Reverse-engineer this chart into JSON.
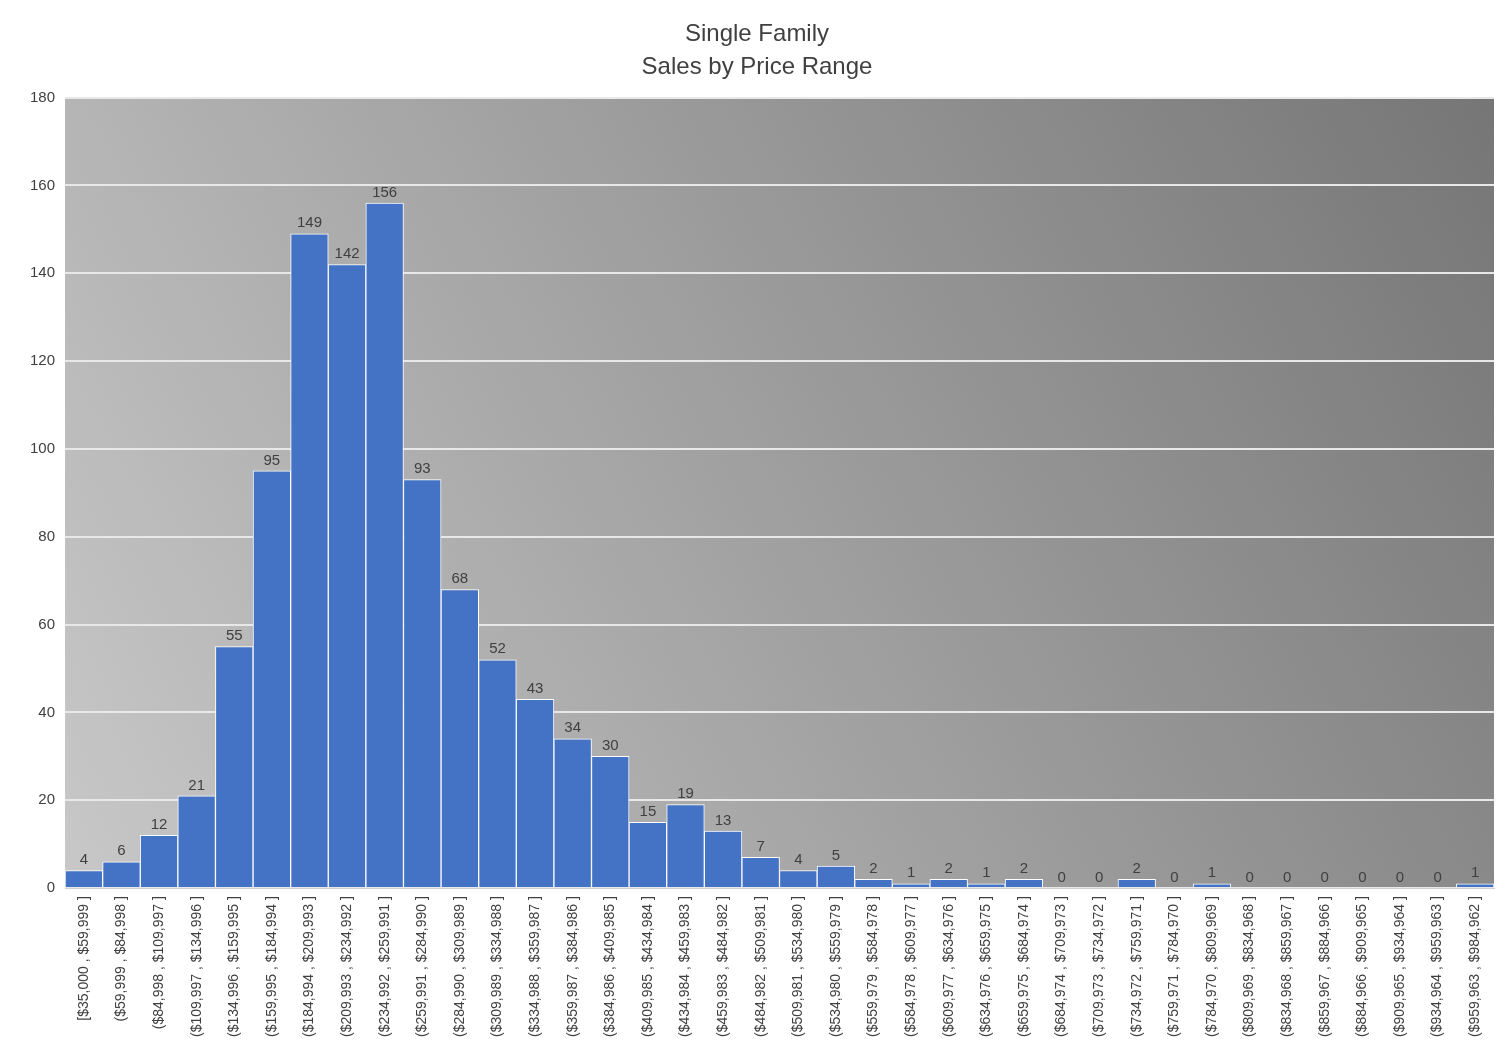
{
  "chart_data": {
    "type": "bar",
    "title": "Single Family",
    "subtitle": "Sales by Price Range",
    "categories": [
      "[$35,000 , $59,999 ]",
      "($59,999 , $84,998 ]",
      "($84,998 , $109,997 ]",
      "($109,997 , $134,996 ]",
      "($134,996 , $159,995 ]",
      "($159,995 , $184,994 ]",
      "($184,994 , $209,993 ]",
      "($209,993 , $234,992 ]",
      "($234,992 , $259,991 ]",
      "($259,991 , $284,990 ]",
      "($284,990 , $309,989 ]",
      "($309,989 , $334,988 ]",
      "($334,988 , $359,987 ]",
      "($359,987 , $384,986 ]",
      "($384,986 , $409,985 ]",
      "($409,985 , $434,984 ]",
      "($434,984 , $459,983 ]",
      "($459,983 , $484,982 ]",
      "($484,982 , $509,981 ]",
      "($509,981 , $534,980 ]",
      "($534,980 , $559,979 ]",
      "($559,979 , $584,978 ]",
      "($584,978 , $609,977 ]",
      "($609,977 , $634,976 ]",
      "($634,976 , $659,975 ]",
      "($659,975 , $684,974 ]",
      "($684,974 , $709,973 ]",
      "($709,973 , $734,972 ]",
      "($734,972 , $759,971 ]",
      "($759,971 , $784,970 ]",
      "($784,970 , $809,969 ]",
      "($809,969 , $834,968 ]",
      "($834,968 , $859,967 ]",
      "($859,967 , $884,966 ]",
      "($884,966 , $909,965 ]",
      "($909,965 , $934,964 ]",
      "($934,964 , $959,963 ]",
      "($959,963 , $984,962 ]"
    ],
    "values": [
      4,
      6,
      12,
      21,
      55,
      95,
      149,
      142,
      156,
      93,
      68,
      52,
      43,
      34,
      30,
      15,
      19,
      13,
      7,
      4,
      5,
      2,
      1,
      2,
      1,
      2,
      0,
      0,
      2,
      0,
      1,
      0,
      0,
      0,
      0,
      0,
      0,
      1
    ],
    "color": "#4472c4",
    "ylim": [
      0,
      180
    ],
    "yticks": [
      0,
      20,
      40,
      60,
      80,
      100,
      120,
      140,
      160,
      180
    ],
    "grid": "y",
    "data_labels": true
  }
}
